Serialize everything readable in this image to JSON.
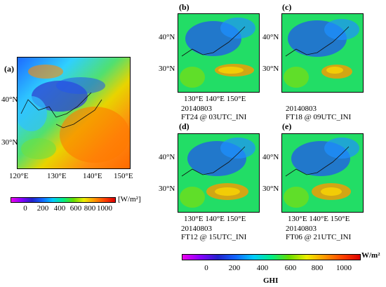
{
  "panels": {
    "a": {
      "letter": "(a)",
      "lat_labels": [
        "40°N",
        "30°N"
      ],
      "lon_labels": [
        "120°E",
        "130°E",
        "140°E",
        "150°E"
      ]
    },
    "b": {
      "letter": "(b)",
      "date": "20140803",
      "run": "FT24 @ 03UTC_INI",
      "lat_labels": [
        "40°N",
        "30°N"
      ],
      "lon_labels": "130°E 140°E 150°E"
    },
    "c": {
      "letter": "(c)",
      "date": "20140803",
      "run": "FT18 @ 09UTC_INI",
      "lat_labels": [
        "40°N",
        "30°N"
      ]
    },
    "d": {
      "letter": "(d)",
      "date": "20140803",
      "run": "FT12 @ 15UTC_INI",
      "lat_labels": [
        "40°N",
        "30°N"
      ],
      "lon_labels": "130°E 140°E 150°E"
    },
    "e": {
      "letter": "(e)",
      "date": "20140803",
      "run": "FT06 @ 21UTC_INI",
      "lat_labels": [
        "40°N",
        "30°N"
      ],
      "lon_labels": "130°E 140°E 150°E"
    }
  },
  "colorbar_small": {
    "unit": "[W/m²]",
    "ticks": [
      "0",
      "200",
      "400",
      "600",
      "800",
      "1000"
    ]
  },
  "colorbar_large": {
    "unit": "W/m²",
    "ticks": [
      "0",
      "200",
      "400",
      "600",
      "800",
      "1000"
    ],
    "title": "GHI"
  },
  "colors": {
    "scale": [
      "#ee00ee",
      "#8800ff",
      "#2222cc",
      "#1166ff",
      "#00ccff",
      "#00ee88",
      "#66dd00",
      "#eeee00",
      "#ff9900",
      "#ff4400",
      "#dd0000"
    ]
  }
}
